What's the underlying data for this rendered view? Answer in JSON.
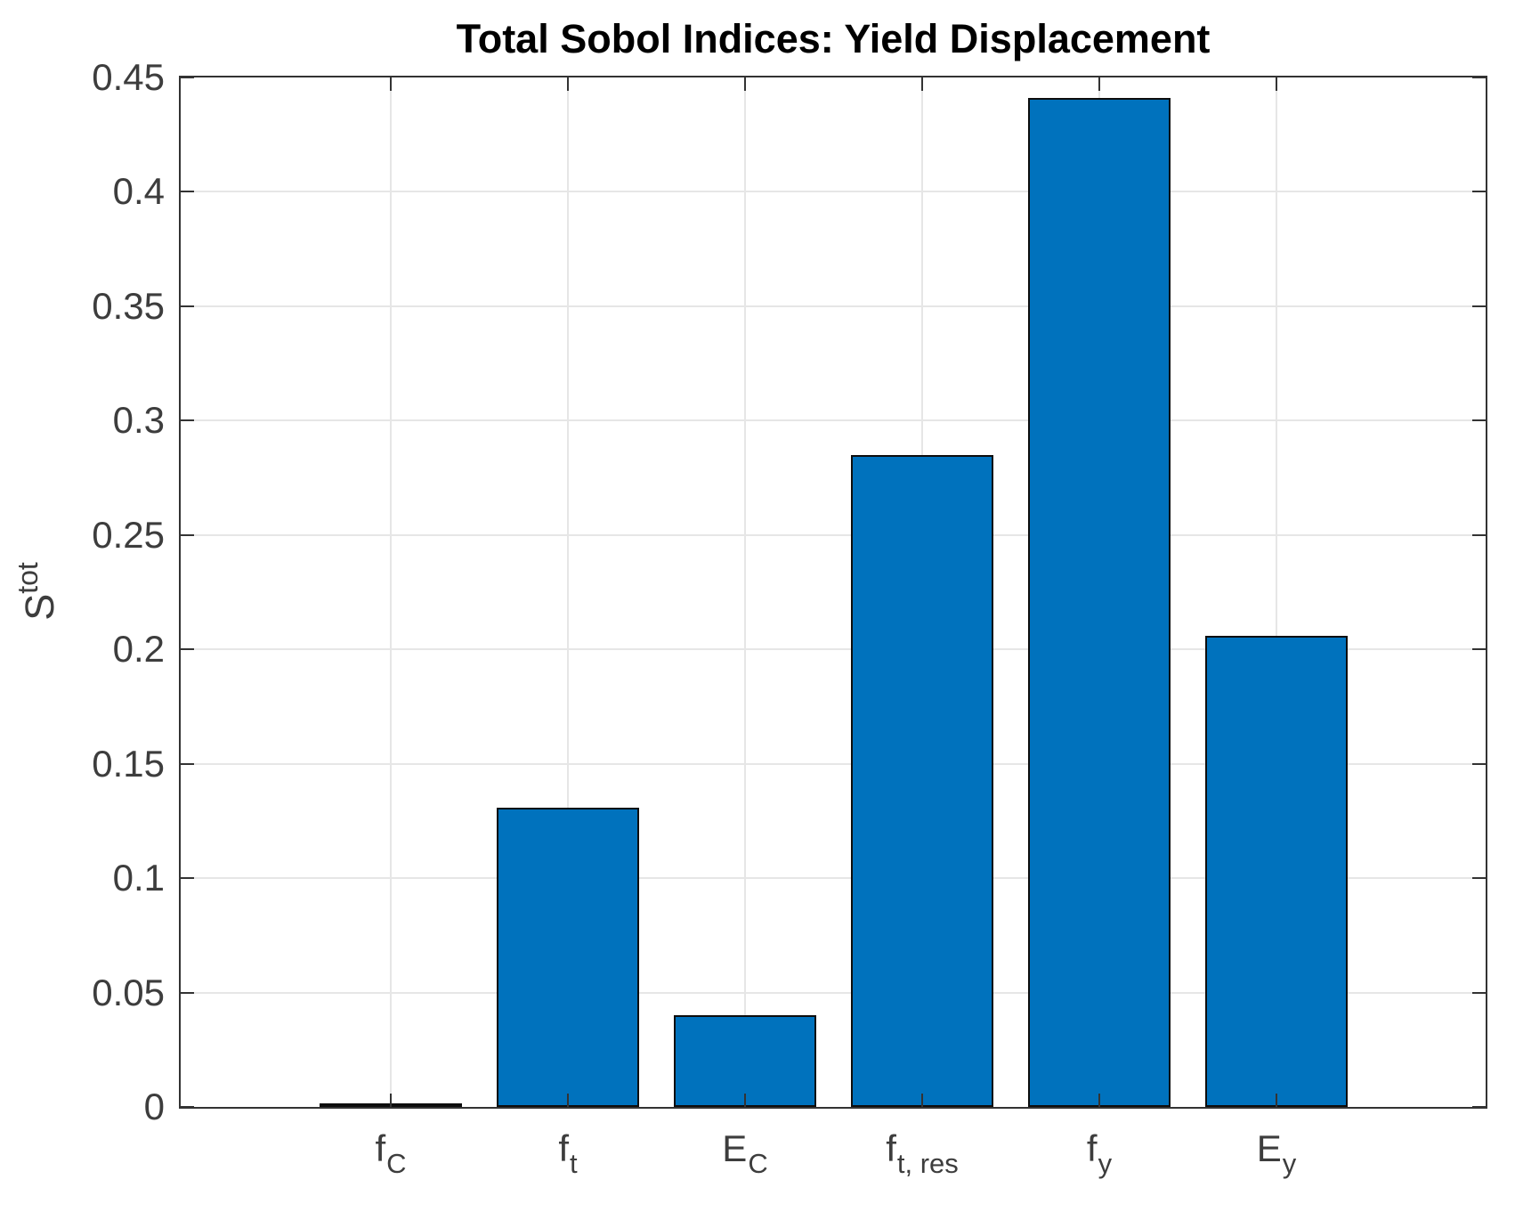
{
  "chart_data": {
    "type": "bar",
    "title": "Total Sobol Indices: Yield Displacement",
    "xlabel": "",
    "ylabel": "S^tot",
    "ylabel_parts": {
      "base": "S",
      "sup": "tot"
    },
    "categories": [
      "f_C",
      "f_t",
      "E_C",
      "f_t, res",
      "f_y",
      "E_y"
    ],
    "categories_display": [
      {
        "main": "f",
        "sub": "C"
      },
      {
        "main": "f",
        "sub": "t"
      },
      {
        "main": "E",
        "sub": "C"
      },
      {
        "main": "f",
        "sub": "t, res"
      },
      {
        "main": "f",
        "sub": "y"
      },
      {
        "main": "E",
        "sub": "y"
      }
    ],
    "values": [
      0.001,
      0.131,
      0.04,
      0.285,
      0.441,
      0.206
    ],
    "ylim": [
      0,
      0.45
    ],
    "yticks": [
      0,
      0.05,
      0.1,
      0.15,
      0.2,
      0.25,
      0.3,
      0.35,
      0.4,
      0.45
    ],
    "ytick_labels": [
      "0",
      "0.05",
      "0.1",
      "0.15",
      "0.2",
      "0.25",
      "0.3",
      "0.35",
      "0.4",
      "0.45"
    ],
    "grid": true,
    "legend": null,
    "colors": {
      "bar_fill": "#0072BD",
      "bar_edge": "#0d0d0d",
      "grid": "#e6e6e6",
      "axis": "#333333",
      "tick_text": "#3d3d3d",
      "title_text": "#000000",
      "background": "#ffffff"
    }
  }
}
